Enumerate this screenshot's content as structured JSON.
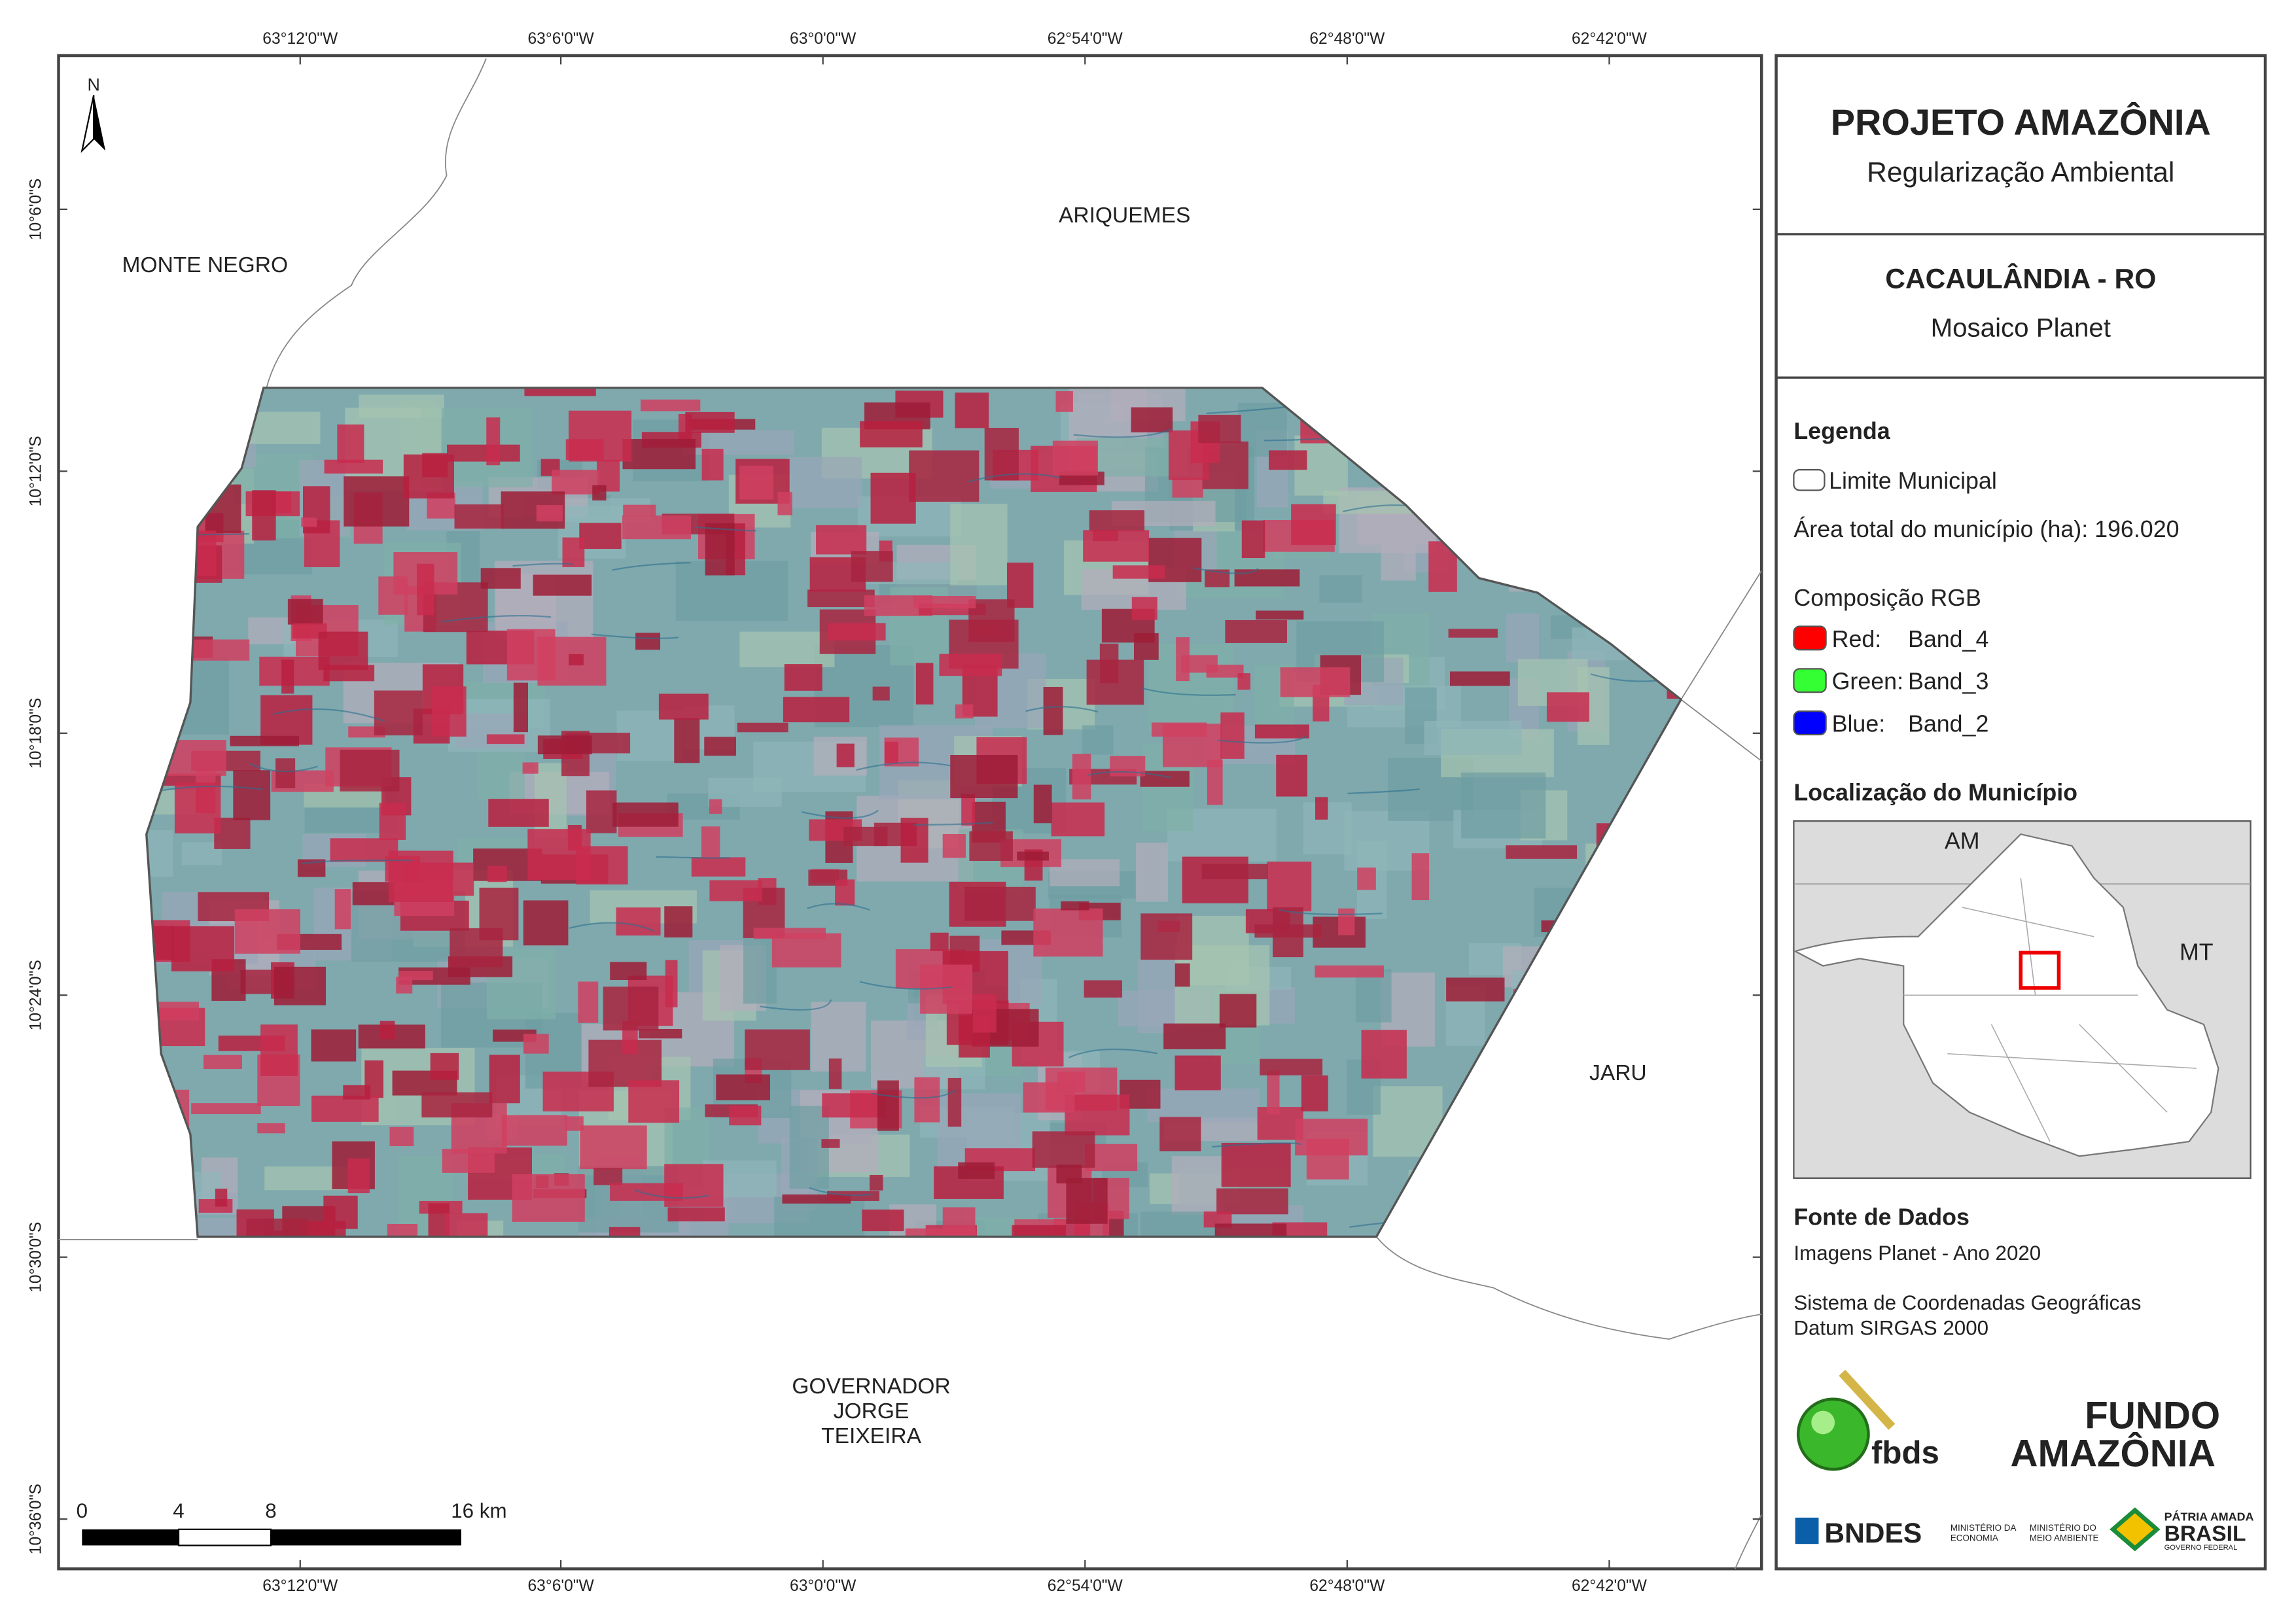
{
  "map": {
    "north_label": "N",
    "x_coordinates": [
      "63°12'0\"W",
      "63°6'0\"W",
      "63°0'0\"W",
      "62°54'0\"W",
      "62°48'0\"W",
      "62°42'0\"W"
    ],
    "y_coordinates": [
      "10°6'0\"S",
      "10°12'0\"S",
      "10°18'0\"S",
      "10°24'0\"S",
      "10°30'0\"S",
      "10°36'0\"S"
    ],
    "place_labels": {
      "monte_negro": "MONTE NEGRO",
      "ariquemes": "ARIQUEMES",
      "jaru": "JARU",
      "governador": [
        "GOVERNADOR",
        "JORGE",
        "TEIXEIRA"
      ]
    },
    "scale_bar": [
      "0",
      "4",
      "8",
      "16 km"
    ]
  },
  "panel": {
    "title": "PROJETO AMAZÔNIA",
    "subtitle": "Regularização Ambiental",
    "municipality": "CACAULÂNDIA - RO",
    "image_source": "Mosaico Planet",
    "legend": {
      "title": "Legenda",
      "boundary": "Limite Municipal",
      "area": "Área total do município (ha): 196.020",
      "rgb_title": "Composição RGB",
      "bands": [
        {
          "label": "Red:",
          "band": "Band_4",
          "color": "#ff0000"
        },
        {
          "label": "Green:",
          "band": "Band_3",
          "color": "#33ff33"
        },
        {
          "label": "Blue:",
          "band": "Band_2",
          "color": "#0000ff"
        }
      ]
    },
    "location": {
      "title": "Localização do Município",
      "labels": [
        "AM",
        "MT"
      ]
    },
    "sources": {
      "title": "Fonte de Dados",
      "lines": [
        "Imagens Planet - Ano 2020",
        "Sistema de Coordenadas Geográficas",
        "Datum SIRGAS 2000"
      ]
    },
    "logos": {
      "fbds": "fbds",
      "fundo": [
        "FUNDO",
        "AMAZÔNIA"
      ],
      "bndes": "BNDES",
      "economia": [
        "MINISTÉRIO DA",
        "ECONOMIA"
      ],
      "meio": [
        "MINISTÉRIO DO",
        "MEIO AMBIENTE"
      ],
      "brasil": [
        "PÁTRIA AMADA",
        "BRASIL",
        "GOVERNO FEDERAL"
      ]
    }
  }
}
